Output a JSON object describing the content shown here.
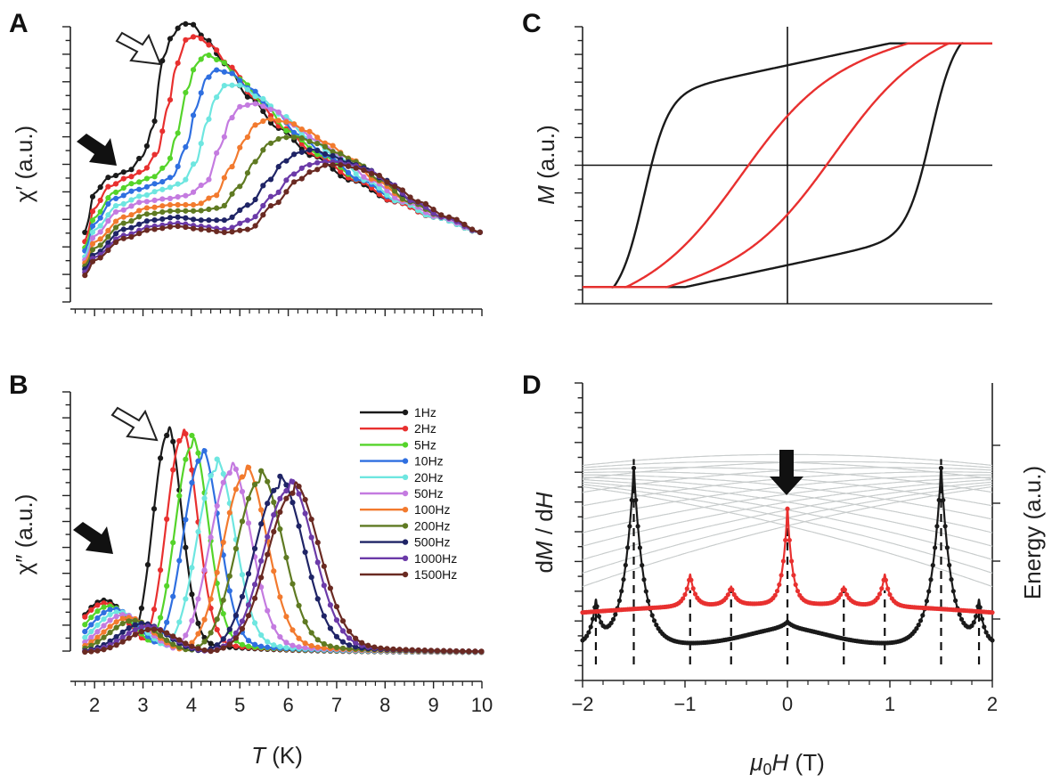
{
  "panels": {
    "A": "A",
    "B": "B",
    "C": "C",
    "D": "D"
  },
  "chart_data": [
    {
      "panel": "A",
      "type": "line",
      "ylabel": "χ′ (a.u.)",
      "xlim": [
        1.5,
        10
      ],
      "series": [
        {
          "name": "1Hz",
          "color": "#1a1a1a",
          "x": [
            1.8,
            2.0,
            2.3,
            2.7,
            3.0,
            3.2,
            3.4,
            3.6,
            3.8,
            4.0,
            4.3,
            4.7,
            5.2,
            5.8,
            6.5,
            7.3,
            8.2,
            9.0,
            10.0
          ],
          "y": [
            0.3,
            0.43,
            0.48,
            0.5,
            0.55,
            0.64,
            0.86,
            0.94,
            0.98,
            0.98,
            0.93,
            0.85,
            0.74,
            0.64,
            0.55,
            0.47,
            0.4,
            0.35,
            0.3
          ]
        },
        {
          "name": "2Hz",
          "color": "#e8302f",
          "x": [
            1.8,
            2.0,
            2.3,
            2.7,
            3.0,
            3.3,
            3.5,
            3.7,
            3.9,
            4.1,
            4.4,
            4.8,
            5.3,
            5.9,
            6.6,
            7.4,
            8.2,
            9.0,
            10.0
          ],
          "y": [
            0.27,
            0.38,
            0.45,
            0.48,
            0.5,
            0.56,
            0.7,
            0.85,
            0.93,
            0.94,
            0.91,
            0.84,
            0.74,
            0.64,
            0.55,
            0.47,
            0.4,
            0.35,
            0.3
          ]
        },
        {
          "name": "5Hz",
          "color": "#55d42a",
          "x": [
            1.8,
            2.0,
            2.4,
            2.8,
            3.2,
            3.5,
            3.7,
            3.9,
            4.1,
            4.3,
            4.6,
            5.0,
            5.5,
            6.0,
            6.7,
            7.5,
            8.3,
            9.0,
            10.0
          ],
          "y": [
            0.25,
            0.35,
            0.43,
            0.46,
            0.48,
            0.52,
            0.62,
            0.76,
            0.85,
            0.88,
            0.86,
            0.8,
            0.72,
            0.63,
            0.55,
            0.47,
            0.4,
            0.35,
            0.3
          ]
        },
        {
          "name": "10Hz",
          "color": "#2f6fe0",
          "x": [
            1.8,
            2.0,
            2.4,
            2.9,
            3.3,
            3.6,
            3.9,
            4.1,
            4.3,
            4.5,
            4.8,
            5.2,
            5.7,
            6.2,
            6.8,
            7.5,
            8.3,
            9.0,
            10.0
          ],
          "y": [
            0.24,
            0.33,
            0.41,
            0.44,
            0.46,
            0.48,
            0.58,
            0.71,
            0.8,
            0.83,
            0.82,
            0.77,
            0.7,
            0.62,
            0.55,
            0.47,
            0.4,
            0.35,
            0.3
          ]
        },
        {
          "name": "20Hz",
          "color": "#6ee6e0",
          "x": [
            1.8,
            2.0,
            2.5,
            3.0,
            3.4,
            3.8,
            4.1,
            4.3,
            4.5,
            4.7,
            5.0,
            5.4,
            5.9,
            6.4,
            7.0,
            7.6,
            8.3,
            9.0,
            10.0
          ],
          "y": [
            0.22,
            0.31,
            0.39,
            0.42,
            0.44,
            0.46,
            0.53,
            0.65,
            0.74,
            0.78,
            0.78,
            0.74,
            0.68,
            0.61,
            0.55,
            0.47,
            0.4,
            0.35,
            0.3
          ]
        },
        {
          "name": "50Hz",
          "color": "#c47be0",
          "x": [
            1.8,
            2.0,
            2.5,
            3.0,
            3.5,
            3.9,
            4.3,
            4.6,
            4.8,
            5.0,
            5.3,
            5.7,
            6.1,
            6.6,
            7.1,
            7.7,
            8.4,
            9.1,
            10.0
          ],
          "y": [
            0.21,
            0.29,
            0.37,
            0.4,
            0.41,
            0.42,
            0.46,
            0.58,
            0.67,
            0.71,
            0.72,
            0.7,
            0.65,
            0.6,
            0.55,
            0.47,
            0.4,
            0.35,
            0.3
          ]
        },
        {
          "name": "100Hz",
          "color": "#f27a2e",
          "x": [
            1.8,
            2.0,
            2.6,
            3.1,
            3.6,
            4.1,
            4.5,
            4.8,
            5.1,
            5.3,
            5.6,
            6.0,
            6.4,
            6.8,
            7.3,
            7.8,
            8.5,
            9.2,
            10.0
          ],
          "y": [
            0.2,
            0.27,
            0.35,
            0.38,
            0.39,
            0.39,
            0.42,
            0.51,
            0.6,
            0.65,
            0.67,
            0.66,
            0.63,
            0.59,
            0.54,
            0.47,
            0.4,
            0.35,
            0.3
          ]
        },
        {
          "name": "200Hz",
          "color": "#5f7a22",
          "x": [
            1.8,
            2.0,
            2.6,
            3.1,
            3.6,
            4.1,
            4.6,
            5.0,
            5.3,
            5.6,
            5.9,
            6.2,
            6.6,
            7.0,
            7.4,
            7.9,
            8.5,
            9.2,
            10.0
          ],
          "y": [
            0.19,
            0.25,
            0.33,
            0.36,
            0.37,
            0.37,
            0.38,
            0.45,
            0.53,
            0.59,
            0.61,
            0.61,
            0.59,
            0.56,
            0.53,
            0.47,
            0.4,
            0.35,
            0.3
          ]
        },
        {
          "name": "500Hz",
          "color": "#1f2466",
          "x": [
            1.8,
            2.0,
            2.6,
            3.2,
            3.7,
            4.2,
            4.7,
            5.2,
            5.6,
            5.9,
            6.2,
            6.5,
            6.9,
            7.2,
            7.6,
            8.0,
            8.6,
            9.2,
            10.0
          ],
          "y": [
            0.18,
            0.23,
            0.31,
            0.34,
            0.35,
            0.34,
            0.34,
            0.39,
            0.47,
            0.53,
            0.56,
            0.57,
            0.55,
            0.53,
            0.51,
            0.47,
            0.4,
            0.35,
            0.3
          ]
        },
        {
          "name": "1000Hz",
          "color": "#6b3aa8",
          "x": [
            1.8,
            2.0,
            2.6,
            3.2,
            3.7,
            4.2,
            4.7,
            5.2,
            5.7,
            6.1,
            6.4,
            6.7,
            7.0,
            7.3,
            7.7,
            8.1,
            8.6,
            9.2,
            10.0
          ],
          "y": [
            0.17,
            0.22,
            0.29,
            0.32,
            0.33,
            0.32,
            0.31,
            0.34,
            0.42,
            0.49,
            0.52,
            0.53,
            0.53,
            0.52,
            0.5,
            0.46,
            0.4,
            0.35,
            0.3
          ]
        },
        {
          "name": "1500Hz",
          "color": "#6a2a22",
          "x": [
            1.8,
            2.0,
            2.6,
            3.2,
            3.7,
            4.2,
            4.7,
            5.2,
            5.7,
            6.2,
            6.5,
            6.8,
            7.1,
            7.4,
            7.8,
            8.2,
            8.7,
            9.3,
            10.0
          ],
          "y": [
            0.16,
            0.21,
            0.28,
            0.31,
            0.32,
            0.31,
            0.3,
            0.31,
            0.39,
            0.47,
            0.5,
            0.52,
            0.52,
            0.51,
            0.49,
            0.45,
            0.4,
            0.35,
            0.3
          ]
        }
      ]
    },
    {
      "panel": "B",
      "type": "line",
      "ylabel": "χ″ (a.u.)",
      "xlabel_italic": "T",
      "xlabel_rest": " (K)",
      "xlim": [
        1.5,
        10
      ],
      "xticks": [
        2,
        3,
        4,
        5,
        6,
        7,
        8,
        9,
        10
      ],
      "series_peaks": [
        {
          "name": "1Hz",
          "color": "#1a1a1a",
          "low": [
            2.2,
            0.28
          ],
          "peak": [
            3.5,
            0.85
          ],
          "w": 0.42
        },
        {
          "name": "2Hz",
          "color": "#e8302f",
          "low": [
            2.2,
            0.27
          ],
          "peak": [
            3.8,
            0.84
          ],
          "w": 0.45
        },
        {
          "name": "5Hz",
          "color": "#55d42a",
          "low": [
            2.3,
            0.26
          ],
          "peak": [
            4.0,
            0.81
          ],
          "w": 0.48
        },
        {
          "name": "10Hz",
          "color": "#2f6fe0",
          "low": [
            2.4,
            0.25
          ],
          "peak": [
            4.2,
            0.77
          ],
          "w": 0.52
        },
        {
          "name": "20Hz",
          "color": "#6ee6e0",
          "low": [
            2.5,
            0.24
          ],
          "peak": [
            4.5,
            0.73
          ],
          "w": 0.56
        },
        {
          "name": "50Hz",
          "color": "#c47be0",
          "low": [
            2.6,
            0.23
          ],
          "peak": [
            4.8,
            0.72
          ],
          "w": 0.6
        },
        {
          "name": "100Hz",
          "color": "#f27a2e",
          "low": [
            2.7,
            0.22
          ],
          "peak": [
            5.1,
            0.71
          ],
          "w": 0.64
        },
        {
          "name": "200Hz",
          "color": "#5f7a22",
          "low": [
            2.8,
            0.21
          ],
          "peak": [
            5.4,
            0.69
          ],
          "w": 0.68
        },
        {
          "name": "500Hz",
          "color": "#1f2466",
          "low": [
            3.0,
            0.2
          ],
          "peak": [
            5.8,
            0.67
          ],
          "w": 0.72
        },
        {
          "name": "1000Hz",
          "color": "#6b3aa8",
          "low": [
            3.1,
            0.19
          ],
          "peak": [
            6.0,
            0.66
          ],
          "w": 0.74
        },
        {
          "name": "1500Hz",
          "color": "#6a2a22",
          "low": [
            3.2,
            0.18
          ],
          "peak": [
            6.1,
            0.65
          ],
          "w": 0.76
        }
      ],
      "legend": [
        "1Hz",
        "2Hz",
        "5Hz",
        "10Hz",
        "20Hz",
        "50Hz",
        "100Hz",
        "200Hz",
        "500Hz",
        "1000Hz",
        "1500Hz"
      ]
    },
    {
      "panel": "C",
      "type": "line",
      "ylabel_italic": "M",
      "ylabel_rest": " (a.u.)",
      "xlim": [
        -2,
        2
      ],
      "ylim": [
        -1,
        1
      ],
      "series": [
        {
          "name": "black loop",
          "color": "#1a1a1a",
          "coercive": 1.4,
          "sharp": 5.0
        },
        {
          "name": "red loop",
          "color": "#e8302f",
          "coercive": 0.45,
          "sharp": 1.6
        }
      ]
    },
    {
      "panel": "D",
      "type": "line",
      "ylabel_italic_1": "M",
      "ylabel_italic_2": "H",
      "ylabel_template": "dM / dH",
      "ylabel_right": "Energy (a.u.)",
      "xlabel": "μ0H (T)",
      "xlim": [
        -2,
        2
      ],
      "xticks": [
        -2,
        -1,
        0,
        1,
        2
      ],
      "xtick_labels": [
        "−2",
        "−1",
        "0",
        "1",
        "2"
      ],
      "dashed_lines_x": [
        -1.87,
        -1.5,
        -0.95,
        -0.55,
        0,
        0.55,
        0.95,
        1.5,
        1.87
      ],
      "series": [
        {
          "name": "black",
          "color": "#1a1a1a",
          "baseline": 0.12,
          "peaks": [
            [
              -1.87,
              0.3,
              0.05
            ],
            [
              -1.5,
              0.9,
              0.1
            ],
            [
              0,
              0.15,
              0.07
            ],
            [
              1.5,
              0.9,
              0.1
            ],
            [
              1.87,
              0.3,
              0.05
            ]
          ]
        },
        {
          "name": "red",
          "color": "#e8302f",
          "baseline": 0.2,
          "peaks": [
            [
              -0.95,
              0.34,
              0.05
            ],
            [
              -0.55,
              0.28,
              0.05
            ],
            [
              0,
              0.62,
              0.05
            ],
            [
              0.55,
              0.28,
              0.05
            ],
            [
              0.95,
              0.34,
              0.05
            ]
          ]
        }
      ]
    }
  ]
}
